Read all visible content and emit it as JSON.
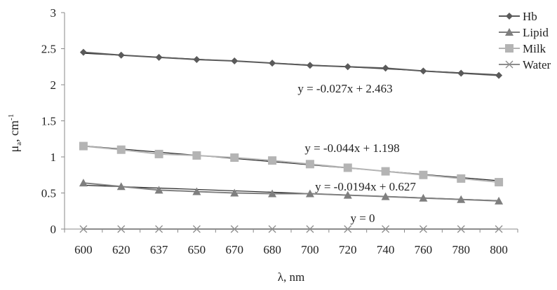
{
  "chart_data": {
    "type": "line",
    "xlabel": "λ, nm",
    "ylabel_main": "μ",
    "ylabel_sub": "a",
    "ylabel_rest": ", cm",
    "ylabel_sup": "-1",
    "categories": [
      "600",
      "620",
      "637",
      "650",
      "670",
      "680",
      "700",
      "720",
      "740",
      "760",
      "780",
      "800"
    ],
    "ylim": [
      0,
      3
    ],
    "yticks": [
      "0",
      "0.5",
      "1",
      "1.5",
      "2",
      "2.5",
      "3"
    ],
    "grid": false,
    "legend_position": "top-right",
    "series": [
      {
        "name": "Hb",
        "marker": "diamond",
        "color": "#5a5a5a",
        "values": [
          2.45,
          2.41,
          2.38,
          2.35,
          2.33,
          2.3,
          2.27,
          2.25,
          2.23,
          2.19,
          2.16,
          2.13
        ]
      },
      {
        "name": "Lipid",
        "marker": "triangle",
        "color": "#7f7f7f",
        "values": [
          0.64,
          0.59,
          0.54,
          0.52,
          0.5,
          0.49,
          0.49,
          0.47,
          0.45,
          0.43,
          0.41,
          0.39
        ]
      },
      {
        "name": "Milk",
        "marker": "square",
        "color": "#b4b4b4",
        "values": [
          1.15,
          1.1,
          1.04,
          1.02,
          0.99,
          0.95,
          0.9,
          0.85,
          0.8,
          0.75,
          0.7,
          0.65
        ]
      },
      {
        "name": "Water",
        "marker": "x",
        "color": "#8c8c8c",
        "values": [
          0,
          0,
          0,
          0,
          0,
          0,
          0,
          0,
          0,
          0,
          0,
          0
        ]
      }
    ],
    "trendlines": [
      {
        "series": "Hb",
        "slope": -0.027,
        "intercept": 2.463,
        "label": "y = -0.027x + 2.463"
      },
      {
        "series": "Milk",
        "slope": -0.044,
        "intercept": 1.198,
        "label": "y = -0.044x + 1.198"
      },
      {
        "series": "Lipid",
        "slope": -0.0194,
        "intercept": 0.627,
        "label": "y = -0.0194x + 0.627"
      },
      {
        "series": "Water",
        "slope": 0,
        "intercept": 0,
        "label": "y = 0"
      }
    ]
  }
}
